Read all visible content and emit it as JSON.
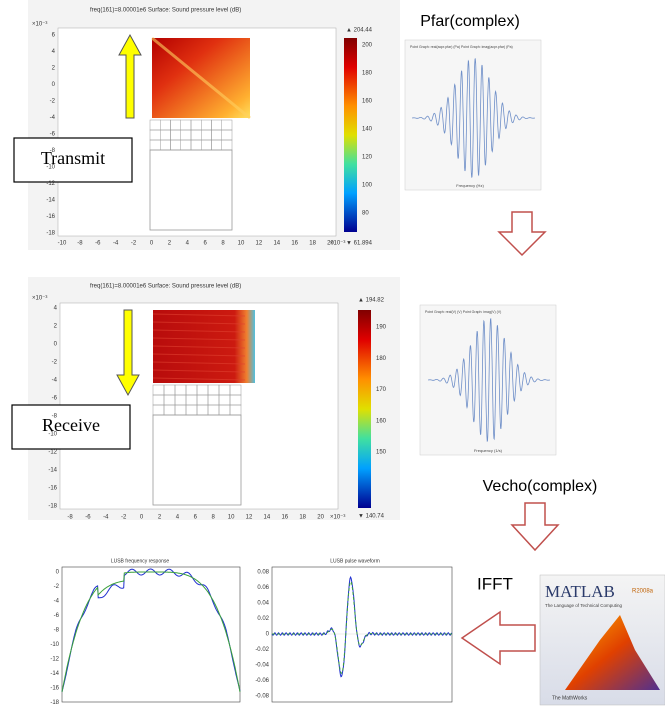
{
  "transmit_plot": {
    "title": "freq(161)=8.00001e6   Surface: Sound pressure level (dB)",
    "y_exponent": "×10⁻³",
    "x_exponent": "×10⁻³",
    "yticks": [
      "6",
      "4",
      "2",
      "0",
      "-2",
      "-4",
      "-6",
      "-8",
      "-10",
      "-12",
      "-14",
      "-16",
      "-18"
    ],
    "xticks": [
      "-10",
      "-8",
      "-6",
      "-4",
      "-2",
      "0",
      "2",
      "4",
      "6",
      "8",
      "10",
      "12",
      "14",
      "16",
      "18",
      "20"
    ],
    "colorbar_ticks": [
      "200",
      "180",
      "160",
      "140",
      "120",
      "100",
      "80"
    ],
    "colorbar_max": "▲ 204.44",
    "colorbar_min": "▼ 61.894"
  },
  "transmit_label": "Transmit",
  "receive_plot": {
    "title": "freq(161)=8.00001e6   Surface: Sound pressure level (dB)",
    "y_exponent": "×10⁻³",
    "x_exponent": "×10⁻³",
    "yticks": [
      "4",
      "2",
      "0",
      "-2",
      "-4",
      "-6",
      "-8",
      "-10",
      "-12",
      "-14",
      "-16",
      "-18"
    ],
    "xticks": [
      "-8",
      "-6",
      "-4",
      "-2",
      "0",
      "2",
      "4",
      "6",
      "8",
      "10",
      "12",
      "14",
      "16",
      "18",
      "20"
    ],
    "colorbar_ticks": [
      "190",
      "180",
      "170",
      "160",
      "150"
    ],
    "colorbar_max": "▲ 194.82",
    "colorbar_min": "▼ 140.74"
  },
  "receive_label": "Receive",
  "pfar": {
    "label": "Pfar(complex)",
    "legend": "Point Graph: real(acpr.pfar) (Pa)  Point Graph: imag(acpr.pfar) (Pa)",
    "xlabel": "Frequency (Hz)"
  },
  "vecho": {
    "label": "Vecho(complex)",
    "legend": "Point Graph: real(V) (V)  Point Graph: imag(V) (V)",
    "xlabel": "Frequency (1/s)"
  },
  "ifft_label": "IFFT",
  "matlab": {
    "name": "MATLAB",
    "version": "R2008a",
    "tagline": "The Language of Technical Computing",
    "company": "The MathWorks"
  },
  "freq_response": {
    "title": "LUSB frequency response",
    "yticks": [
      "0",
      "-2",
      "-4",
      "-6",
      "-8",
      "-10",
      "-12",
      "-14",
      "-16",
      "-18"
    ]
  },
  "pulse": {
    "title": "LUSB pulse waveform",
    "yticks": [
      "0.08",
      "0.06",
      "0.04",
      "0.02",
      "0",
      "-0.02",
      "-0.04",
      "-0.06",
      "-0.08"
    ]
  }
}
